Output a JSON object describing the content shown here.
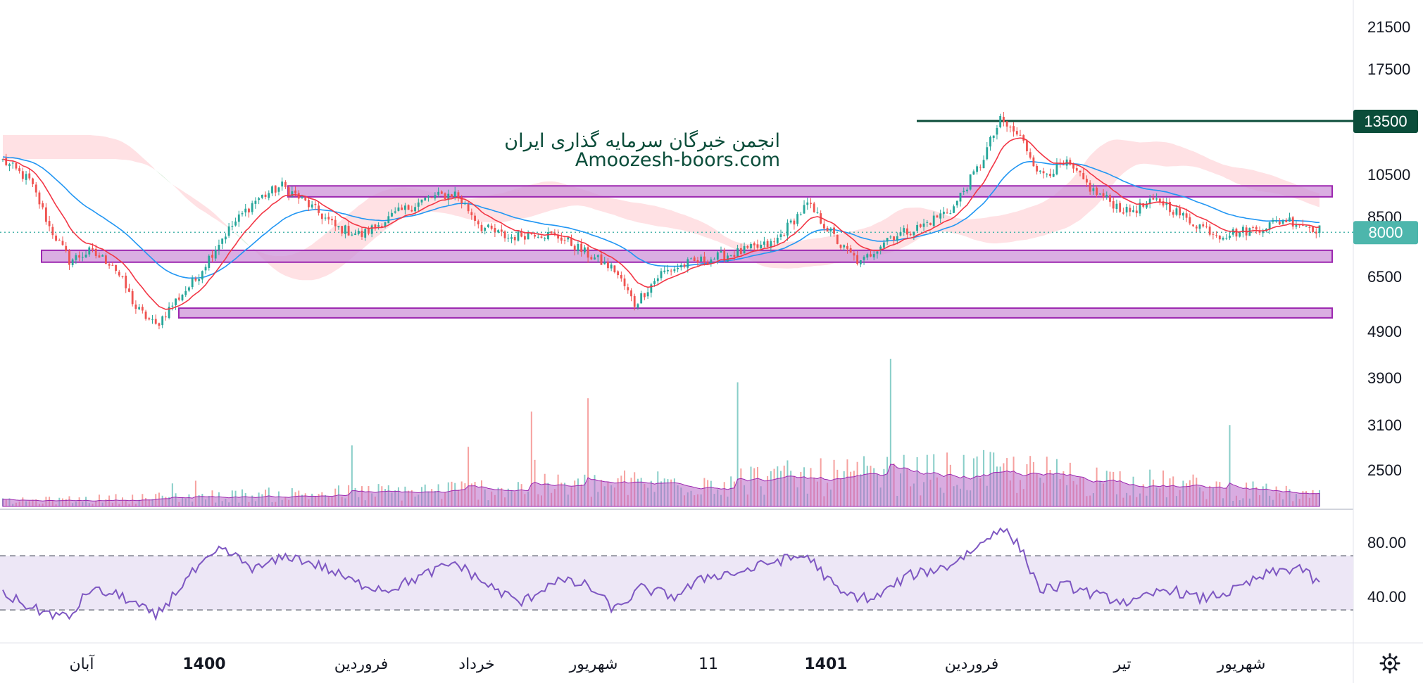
{
  "watermark": {
    "line1": "انجمن خبرگان سرمایه گذاری ایران",
    "line2": "Amoozesh-boors.com"
  },
  "settings_icon": "gear-icon",
  "colors": {
    "up": "#26a69a",
    "down": "#ef5350",
    "ma_fast": "#f23645",
    "ma_slow": "#2196f3",
    "zone_fill": "#ce93d8",
    "zone_stroke": "#9c27b0",
    "resistance": "#0b4d3a",
    "last_price": "#4db6ac",
    "rsi_line": "#7e57c2",
    "rsi_band": "#ede7f6",
    "volume_ma": "#ba68c8",
    "cloud_bear": "#ffcdd2",
    "cloud_bull": "#c8e6c9"
  },
  "chart_data": {
    "type": "candlestick",
    "price_scale": "log",
    "price_axis_ticks": [
      21500,
      17500,
      13500,
      10500,
      8500,
      6500,
      4900,
      3900,
      3100,
      2500
    ],
    "price_range": [
      2000,
      24000
    ],
    "time_labels": [
      "آبان",
      "1400",
      "فروردین",
      "خرداد",
      "شهریور",
      "11",
      "1401",
      "فروردین",
      "تیر",
      "شهریور"
    ],
    "bold_time_labels": [
      "1400",
      "1401"
    ],
    "resistance_level": {
      "value": 13500,
      "label": "13500"
    },
    "last_price": {
      "value": 8000,
      "label": "8000"
    },
    "support_resistance_zones": [
      {
        "low": 9450,
        "high": 9950
      },
      {
        "low": 6950,
        "high": 7350
      },
      {
        "low": 5350,
        "high": 5600
      }
    ],
    "price_path_anchors": [
      [
        0,
        11200
      ],
      [
        8,
        10200
      ],
      [
        14,
        8200
      ],
      [
        20,
        7000
      ],
      [
        26,
        7300
      ],
      [
        33,
        6900
      ],
      [
        40,
        5600
      ],
      [
        46,
        5150
      ],
      [
        52,
        5800
      ],
      [
        58,
        6400
      ],
      [
        66,
        7800
      ],
      [
        76,
        9300
      ],
      [
        84,
        9950
      ],
      [
        92,
        9100
      ],
      [
        100,
        8200
      ],
      [
        108,
        7900
      ],
      [
        118,
        8700
      ],
      [
        128,
        9400
      ],
      [
        136,
        9600
      ],
      [
        144,
        8200
      ],
      [
        152,
        7800
      ],
      [
        160,
        8000
      ],
      [
        168,
        7800
      ],
      [
        176,
        7200
      ],
      [
        184,
        6700
      ],
      [
        190,
        5700
      ],
      [
        198,
        6600
      ],
      [
        206,
        6900
      ],
      [
        214,
        7100
      ],
      [
        222,
        7300
      ],
      [
        232,
        7600
      ],
      [
        242,
        9100
      ],
      [
        252,
        7500
      ],
      [
        258,
        6900
      ],
      [
        266,
        7800
      ],
      [
        276,
        8200
      ],
      [
        286,
        9000
      ],
      [
        294,
        11000
      ],
      [
        300,
        13500
      ],
      [
        306,
        12500
      ],
      [
        312,
        10500
      ],
      [
        320,
        11000
      ],
      [
        328,
        9700
      ],
      [
        338,
        8800
      ],
      [
        348,
        9300
      ],
      [
        356,
        8500
      ],
      [
        366,
        7900
      ],
      [
        376,
        8100
      ],
      [
        386,
        8500
      ],
      [
        396,
        8100
      ]
    ],
    "bar_count": 397,
    "volume_series": {
      "name": "Volume",
      "description_anchors": [
        [
          0,
          1
        ],
        [
          120,
          3
        ],
        [
          250,
          6
        ],
        [
          300,
          7
        ],
        [
          397,
          2
        ]
      ]
    },
    "rsi": {
      "ticks": [
        80.0,
        40.0
      ],
      "tick_labels": [
        "80.00",
        "40.00"
      ],
      "upper": 70,
      "lower": 30,
      "range": [
        15,
        95
      ],
      "anchors": [
        [
          0,
          42
        ],
        [
          10,
          30
        ],
        [
          20,
          24
        ],
        [
          26,
          45
        ],
        [
          36,
          40
        ],
        [
          46,
          25
        ],
        [
          56,
          55
        ],
        [
          66,
          75
        ],
        [
          76,
          60
        ],
        [
          86,
          70
        ],
        [
          96,
          62
        ],
        [
          106,
          50
        ],
        [
          116,
          45
        ],
        [
          126,
          55
        ],
        [
          136,
          65
        ],
        [
          146,
          48
        ],
        [
          156,
          35
        ],
        [
          166,
          52
        ],
        [
          176,
          48
        ],
        [
          184,
          30
        ],
        [
          192,
          46
        ],
        [
          202,
          40
        ],
        [
          212,
          55
        ],
        [
          222,
          58
        ],
        [
          232,
          66
        ],
        [
          242,
          70
        ],
        [
          252,
          42
        ],
        [
          262,
          38
        ],
        [
          272,
          55
        ],
        [
          284,
          62
        ],
        [
          294,
          78
        ],
        [
          300,
          92
        ],
        [
          306,
          76
        ],
        [
          312,
          45
        ],
        [
          320,
          48
        ],
        [
          330,
          40
        ],
        [
          340,
          35
        ],
        [
          350,
          46
        ],
        [
          360,
          38
        ],
        [
          370,
          44
        ],
        [
          380,
          56
        ],
        [
          390,
          62
        ],
        [
          396,
          48
        ]
      ]
    }
  }
}
